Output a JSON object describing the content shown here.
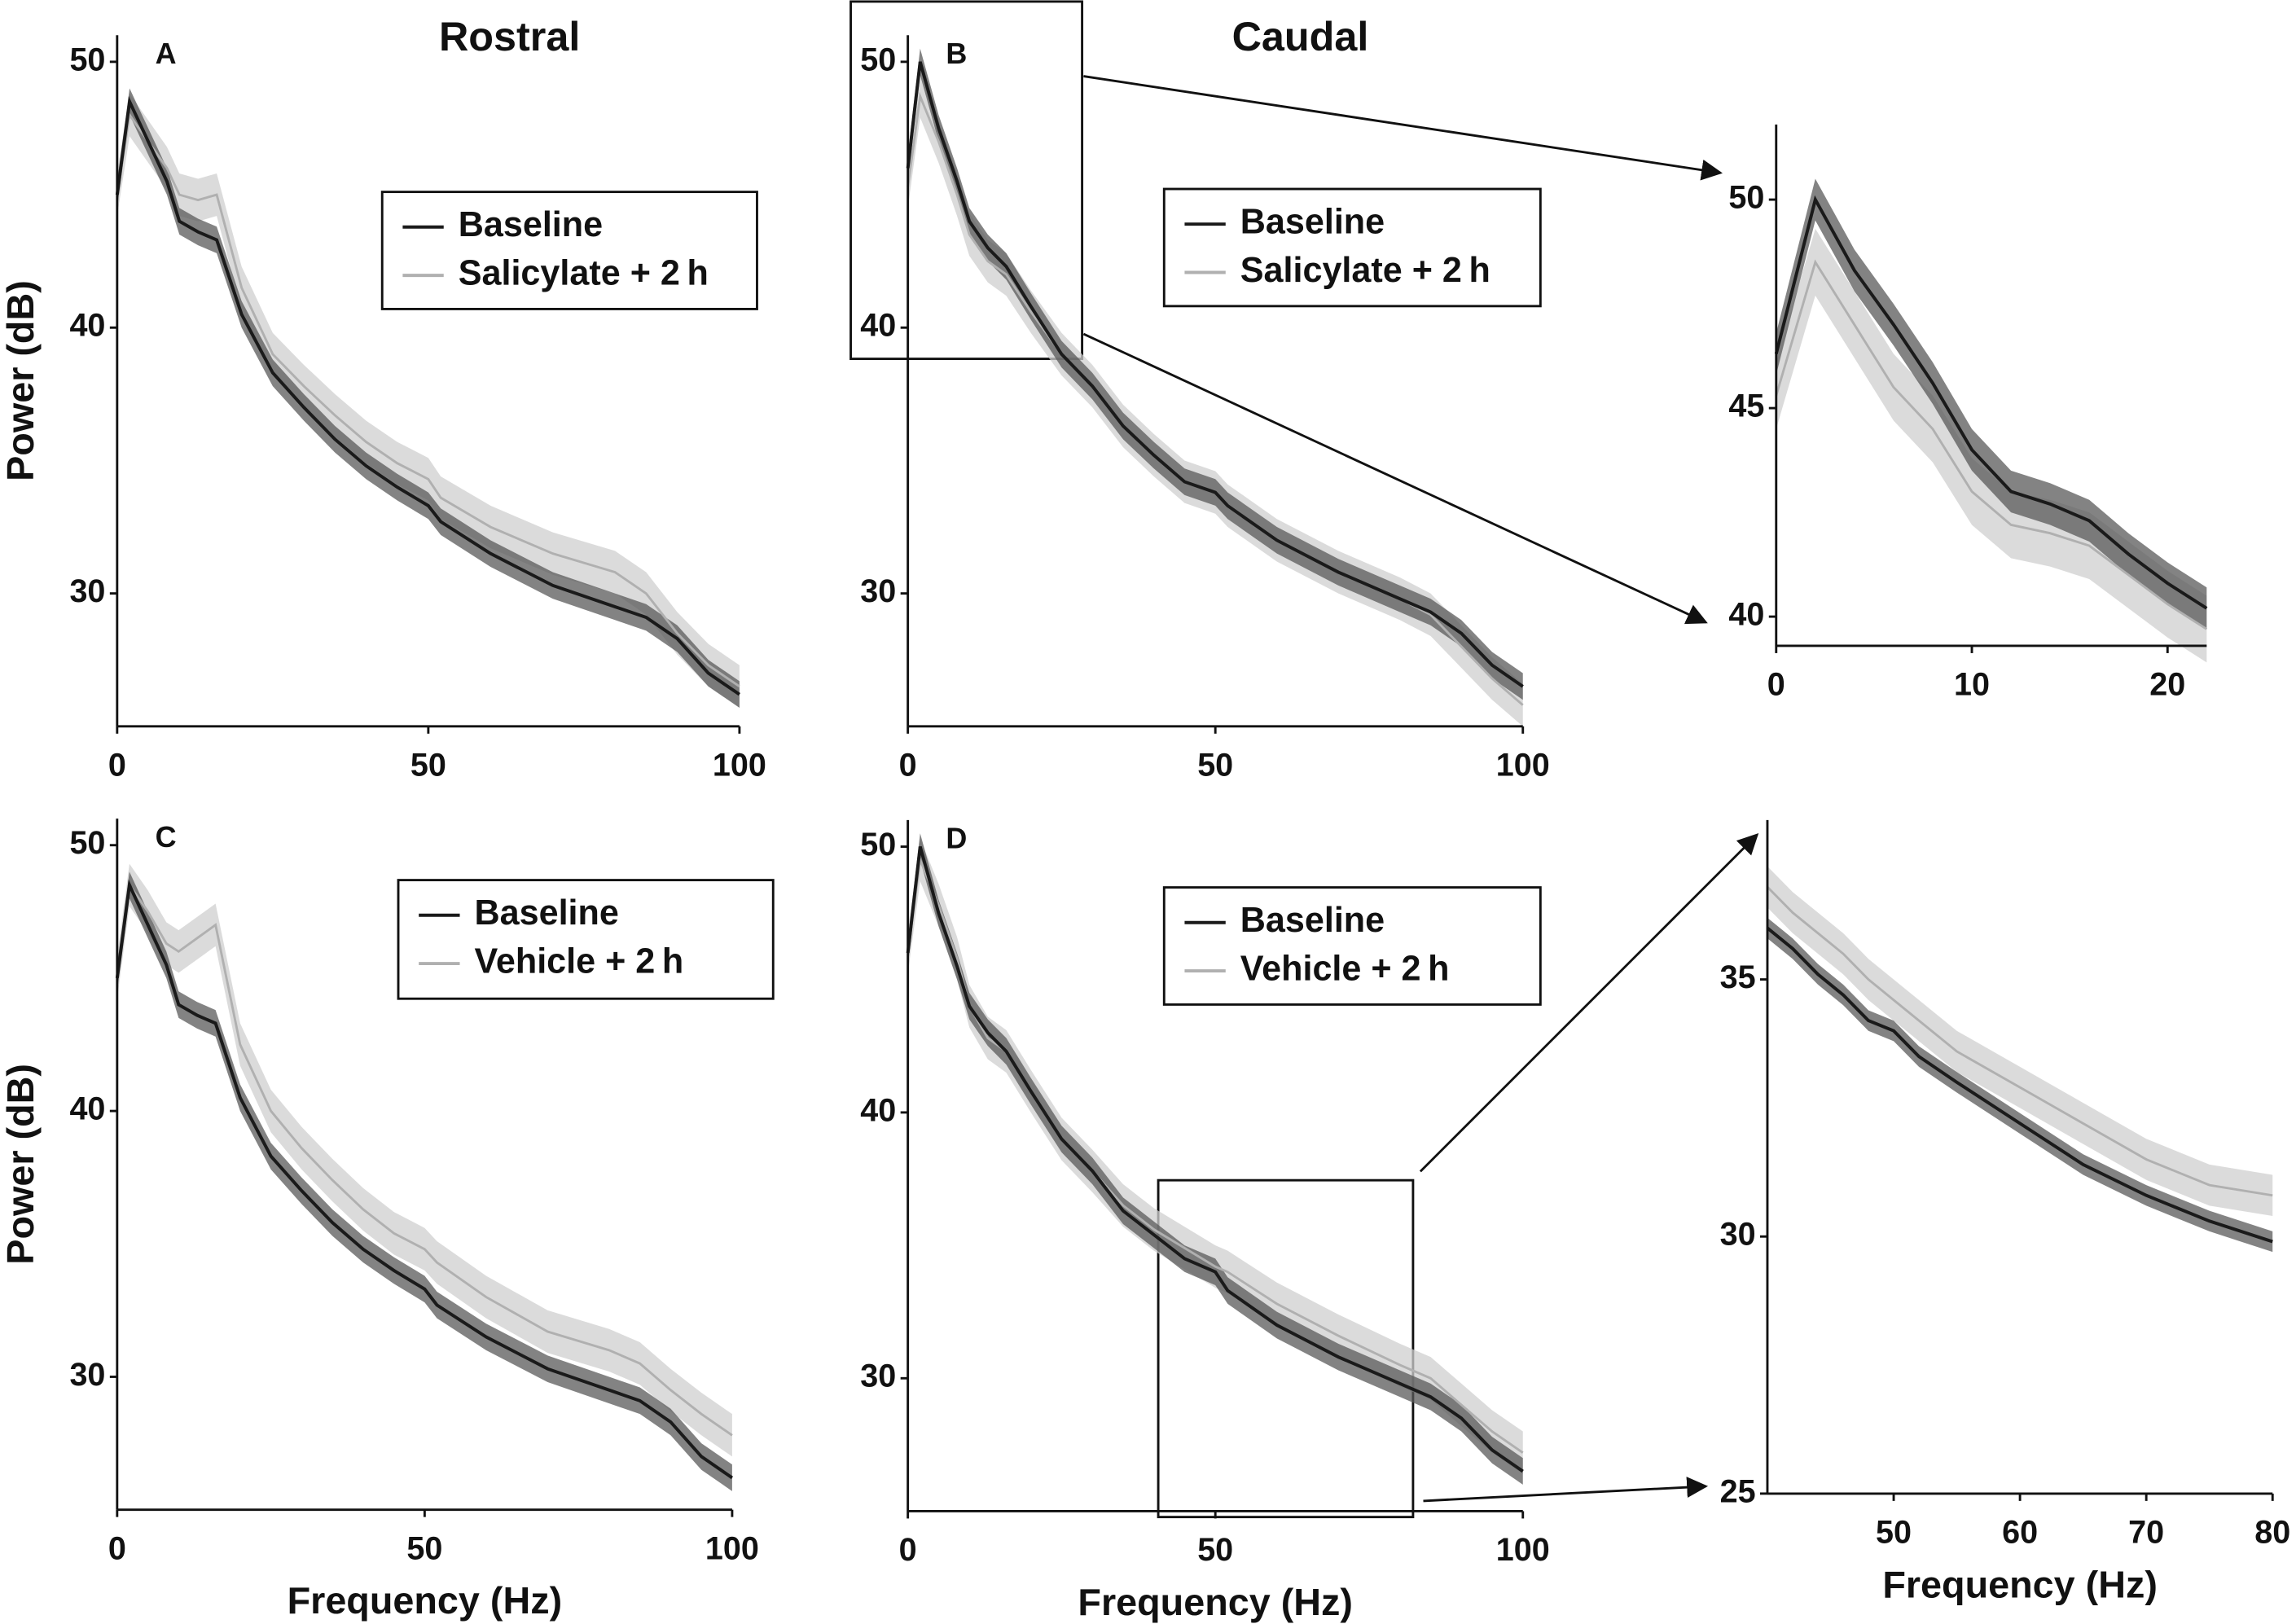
{
  "chart_data": [
    {
      "type": "line",
      "panel": "A",
      "title": "Rostral",
      "ylabel": "Power (dB)",
      "x": [
        0,
        2,
        5,
        8,
        10,
        13,
        16,
        20,
        25,
        30,
        35,
        40,
        45,
        50,
        52,
        60,
        70,
        80,
        85,
        90,
        95,
        100
      ],
      "xlim": [
        0,
        100
      ],
      "ylim": [
        25,
        51
      ],
      "xticks": [
        0,
        50,
        100
      ],
      "yticks": [
        30,
        40,
        50
      ],
      "series": [
        {
          "name": "Baseline",
          "color": "#1a1a1a",
          "band_color": "#5a5a5a",
          "error": 0.5,
          "values": [
            45,
            48.5,
            47,
            45.5,
            44,
            43.6,
            43.3,
            40.5,
            38.3,
            37,
            35.8,
            34.8,
            34,
            33.3,
            32.7,
            31.5,
            30.3,
            29.5,
            29.1,
            28.3,
            27,
            26.2
          ]
        },
        {
          "name": "Salicylate + 2 h",
          "color": "#b0b0b0",
          "band_color": "#cfcfcf",
          "error": 0.8,
          "values": [
            45,
            48,
            47,
            46,
            45,
            44.8,
            45,
            41.5,
            39,
            37.8,
            36.7,
            35.7,
            34.9,
            34.3,
            33.6,
            32.5,
            31.5,
            30.8,
            30,
            28.5,
            27.3,
            26.5
          ]
        }
      ]
    },
    {
      "type": "line",
      "panel": "B",
      "title": "Caudal",
      "x": [
        0,
        2,
        5,
        8,
        10,
        13,
        16,
        20,
        25,
        30,
        35,
        40,
        45,
        50,
        52,
        60,
        70,
        80,
        85,
        90,
        95,
        100
      ],
      "xlim": [
        0,
        100
      ],
      "ylim": [
        25,
        51
      ],
      "xticks": [
        0,
        50,
        100
      ],
      "yticks": [
        30,
        40,
        50
      ],
      "series": [
        {
          "name": "Baseline",
          "color": "#1a1a1a",
          "band_color": "#5a5a5a",
          "error": 0.5,
          "values": [
            46,
            50,
            47.5,
            45.5,
            44,
            43,
            42.3,
            40.8,
            39,
            37.8,
            36.3,
            35.2,
            34.2,
            33.8,
            33.3,
            32,
            30.8,
            29.8,
            29.3,
            28.5,
            27.3,
            26.5
          ]
        },
        {
          "name": "Salicylate + 2 h",
          "color": "#b0b0b0",
          "band_color": "#cfcfcf",
          "error": 0.8,
          "values": [
            45.3,
            48.7,
            47,
            45,
            43.5,
            42.5,
            42,
            40.6,
            39,
            37.8,
            36.3,
            35.2,
            34.2,
            33.8,
            33.3,
            32,
            30.8,
            29.8,
            29.2,
            28,
            26.8,
            25.8
          ]
        }
      ]
    },
    {
      "type": "line",
      "x": [
        0,
        2,
        4,
        6,
        8,
        10,
        12,
        14,
        16,
        18,
        20,
        22
      ],
      "xlim": [
        0,
        22
      ],
      "ylim": [
        39.3,
        51.8
      ],
      "xticks": [
        0,
        10,
        20
      ],
      "yticks": [
        40,
        45,
        50
      ],
      "series": [
        {
          "color": "#1a1a1a",
          "band_color": "#5a5a5a",
          "error": 0.5,
          "values": [
            46.3,
            50,
            48.3,
            47,
            45.6,
            44,
            43,
            42.7,
            42.3,
            41.5,
            40.8,
            40.2
          ]
        },
        {
          "color": "#b0b0b0",
          "band_color": "#cfcfcf",
          "error": 0.8,
          "values": [
            45.3,
            48.5,
            47,
            45.5,
            44.5,
            43,
            42.2,
            42,
            41.7,
            41,
            40.3,
            39.7
          ]
        }
      ]
    },
    {
      "type": "line",
      "panel": "C",
      "ylabel": "Power (dB)",
      "xlabel": "Frequency (Hz)",
      "x": [
        0,
        2,
        5,
        8,
        10,
        13,
        16,
        20,
        25,
        30,
        35,
        40,
        45,
        50,
        52,
        60,
        70,
        80,
        85,
        90,
        95,
        100
      ],
      "xlim": [
        0,
        100
      ],
      "ylim": [
        25,
        51
      ],
      "xticks": [
        0,
        50,
        100
      ],
      "yticks": [
        30,
        40,
        50
      ],
      "series": [
        {
          "name": "Baseline",
          "color": "#1a1a1a",
          "band_color": "#5a5a5a",
          "error": 0.5,
          "values": [
            45,
            48.5,
            47,
            45.5,
            44,
            43.6,
            43.3,
            40.5,
            38.3,
            37,
            35.8,
            34.8,
            34,
            33.3,
            32.7,
            31.5,
            30.3,
            29.5,
            29.1,
            28.3,
            27,
            26.2
          ]
        },
        {
          "name": "Vehicle + 2 h",
          "color": "#b0b0b0",
          "band_color": "#cfcfcf",
          "error": 0.8,
          "values": [
            45,
            48.5,
            47.5,
            46.3,
            46,
            46.5,
            47,
            42.5,
            40,
            38.6,
            37.4,
            36.3,
            35.4,
            34.8,
            34.3,
            33,
            31.7,
            31,
            30.5,
            29.5,
            28.6,
            27.8
          ]
        }
      ]
    },
    {
      "type": "line",
      "panel": "D",
      "xlabel": "Frequency (Hz)",
      "x": [
        0,
        2,
        5,
        8,
        10,
        13,
        16,
        20,
        25,
        30,
        35,
        40,
        45,
        50,
        52,
        60,
        70,
        80,
        85,
        90,
        95,
        100
      ],
      "xlim": [
        0,
        100
      ],
      "ylim": [
        25,
        51
      ],
      "xticks": [
        0,
        50,
        100
      ],
      "yticks": [
        30,
        40,
        50
      ],
      "series": [
        {
          "name": "Baseline",
          "color": "#1a1a1a",
          "band_color": "#5a5a5a",
          "error": 0.5,
          "values": [
            46,
            50,
            47.5,
            45.5,
            44,
            43,
            42.3,
            40.8,
            39,
            37.8,
            36.3,
            35.4,
            34.5,
            34,
            33.3,
            32,
            30.8,
            29.8,
            29.3,
            28.5,
            27.3,
            26.5
          ]
        },
        {
          "name": "Vehicle + 2 h",
          "color": "#b0b0b0",
          "band_color": "#cfcfcf",
          "error": 0.8,
          "values": [
            46,
            49.5,
            47.8,
            45.8,
            44,
            42.8,
            42.3,
            40.8,
            39,
            37.8,
            36.5,
            35.6,
            34.9,
            34.2,
            34,
            32.8,
            31.6,
            30.5,
            30,
            29,
            28,
            27.2
          ]
        }
      ]
    },
    {
      "type": "line",
      "xlabel": "Frequency (Hz)",
      "x": [
        40,
        42,
        44,
        46,
        48,
        50,
        52,
        55,
        60,
        65,
        70,
        75,
        80
      ],
      "xlim": [
        40,
        80
      ],
      "ylim": [
        25,
        38.1
      ],
      "xticks": [
        50,
        60,
        70,
        80
      ],
      "yticks": [
        25,
        30,
        35
      ],
      "series": [
        {
          "color": "#1a1a1a",
          "band_color": "#5a5a5a",
          "error": 0.2,
          "values": [
            36,
            35.6,
            35.1,
            34.7,
            34.2,
            34,
            33.5,
            33,
            32.2,
            31.4,
            30.8,
            30.3,
            29.9
          ]
        },
        {
          "color": "#b0b0b0",
          "band_color": "#cfcfcf",
          "error": 0.4,
          "values": [
            36.8,
            36.3,
            35.9,
            35.5,
            35,
            34.6,
            34.2,
            33.6,
            32.9,
            32.2,
            31.5,
            31,
            30.8
          ]
        }
      ]
    }
  ]
}
